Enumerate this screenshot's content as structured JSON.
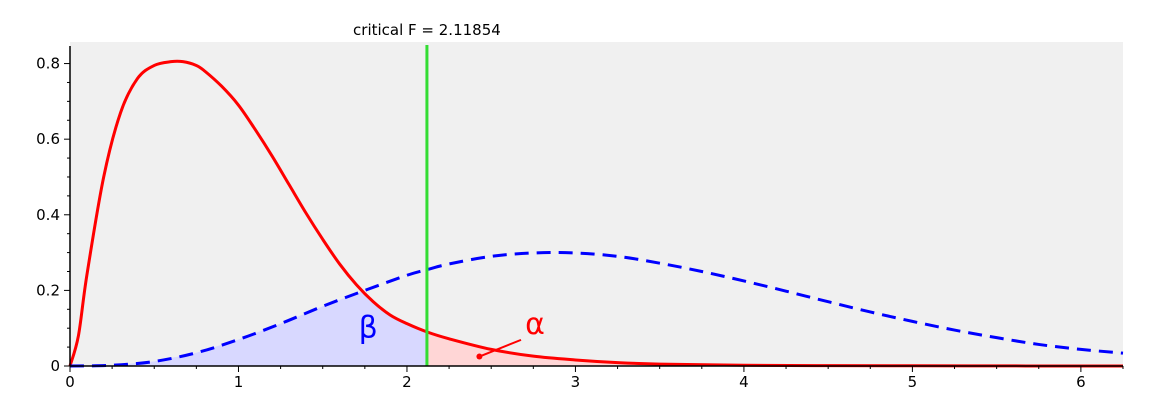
{
  "chart_data": {
    "type": "line",
    "title": "",
    "xlabel": "",
    "ylabel": "",
    "xlim": [
      0,
      6.25
    ],
    "ylim": [
      0,
      0.82
    ],
    "x_ticks": [
      {
        "value": 0,
        "label": "0"
      },
      {
        "value": 1,
        "label": "1"
      },
      {
        "value": 2,
        "label": "2"
      },
      {
        "value": 3,
        "label": "3"
      },
      {
        "value": 4,
        "label": "4"
      },
      {
        "value": 5,
        "label": "5"
      },
      {
        "value": 6,
        "label": "6"
      }
    ],
    "y_ticks": [
      {
        "value": 0,
        "label": "0"
      },
      {
        "value": 0.2,
        "label": "0.2"
      },
      {
        "value": 0.4,
        "label": "0.4"
      },
      {
        "value": 0.6,
        "label": "0.6"
      },
      {
        "value": 0.8,
        "label": "0.8"
      }
    ],
    "series": [
      {
        "style": "solid",
        "color": "#ff0000",
        "x": [
          0,
          0.05,
          0.1,
          0.2,
          0.3,
          0.4,
          0.5,
          0.6,
          0.67,
          0.75,
          0.8,
          0.9,
          1.0,
          1.1,
          1.2,
          1.3,
          1.4,
          1.5,
          1.6,
          1.7,
          1.8,
          1.9,
          2.0,
          2.12,
          2.25,
          2.5,
          2.75,
          3.0,
          3.25,
          3.5,
          4.0,
          4.5,
          5.0,
          5.5,
          6.0,
          6.25
        ],
        "y": [
          0,
          0.08,
          0.24,
          0.5,
          0.67,
          0.76,
          0.795,
          0.805,
          0.805,
          0.795,
          0.78,
          0.74,
          0.69,
          0.625,
          0.555,
          0.48,
          0.405,
          0.335,
          0.27,
          0.215,
          0.17,
          0.135,
          0.112,
          0.09,
          0.072,
          0.044,
          0.026,
          0.016,
          0.009,
          0.005,
          0.002,
          0.001,
          0.0005,
          0.0002,
          0.0001,
          0.0001
        ]
      },
      {
        "style": "dashed",
        "color": "#0000ff",
        "x": [
          0,
          0.25,
          0.5,
          0.75,
          1.0,
          1.25,
          1.5,
          1.75,
          2.0,
          2.12,
          2.25,
          2.5,
          2.75,
          3.0,
          3.25,
          3.5,
          3.75,
          4.0,
          4.25,
          4.5,
          4.75,
          5.0,
          5.25,
          5.5,
          5.75,
          6.0,
          6.25
        ],
        "y": [
          0,
          0.002,
          0.012,
          0.035,
          0.07,
          0.112,
          0.158,
          0.2,
          0.24,
          0.255,
          0.27,
          0.29,
          0.299,
          0.299,
          0.29,
          0.272,
          0.25,
          0.225,
          0.198,
          0.17,
          0.143,
          0.118,
          0.095,
          0.075,
          0.057,
          0.044,
          0.034
        ]
      }
    ],
    "critical": {
      "x": 2.11854,
      "label": "critical F = 2.11854",
      "color": "#33dd33"
    },
    "regions": {
      "beta": {
        "label": "β",
        "color": "#0000ff",
        "fill": "#d8d8ff",
        "x": 1.77,
        "y": 0.075
      },
      "alpha": {
        "label": "α",
        "color": "#ff0000",
        "fill": "#ffd6d6",
        "x": 2.76,
        "y": 0.085,
        "pointer_to": [
          2.43,
          0.025
        ]
      }
    },
    "plot_background": "#f0f0f0",
    "grid": false
  }
}
